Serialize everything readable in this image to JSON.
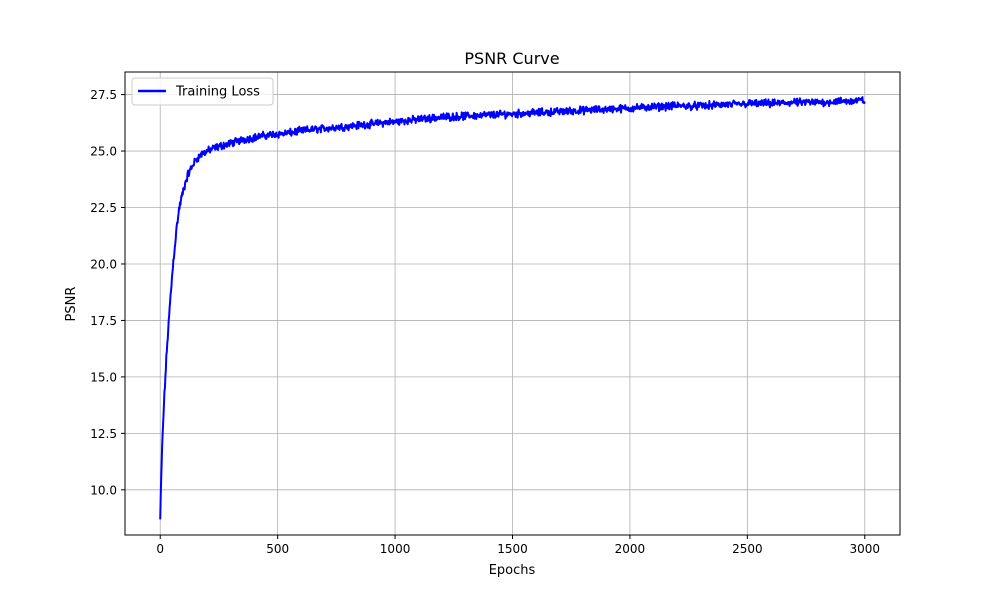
{
  "chart_data": {
    "type": "line",
    "title": "PSNR Curve",
    "xlabel": "Epochs",
    "ylabel": "PSNR",
    "xlim": [
      -150,
      3150
    ],
    "ylim": [
      8.0,
      28.5
    ],
    "x_ticks": [
      0,
      500,
      1000,
      1500,
      2000,
      2500,
      3000
    ],
    "x_tick_labels": [
      "0",
      "500",
      "1000",
      "1500",
      "2000",
      "2500",
      "3000"
    ],
    "y_ticks": [
      10.0,
      12.5,
      15.0,
      17.5,
      20.0,
      22.5,
      25.0,
      27.5
    ],
    "y_tick_labels": [
      "10.0",
      "12.5",
      "15.0",
      "17.5",
      "20.0",
      "22.5",
      "25.0",
      "27.5"
    ],
    "grid": true,
    "legend_position": "upper-left",
    "series": [
      {
        "name": "Training Loss",
        "color": "#0000ff",
        "x": [
          0,
          5,
          10,
          15,
          20,
          25,
          30,
          40,
          50,
          60,
          70,
          80,
          90,
          100,
          110,
          120,
          130,
          140,
          150,
          175,
          200,
          225,
          250,
          300,
          350,
          400,
          450,
          500,
          550,
          600,
          650,
          700,
          750,
          800,
          850,
          900,
          950,
          1000,
          1100,
          1200,
          1300,
          1400,
          1500,
          1600,
          1700,
          1800,
          1900,
          2000,
          2100,
          2200,
          2300,
          2400,
          2500,
          2600,
          2700,
          2800,
          2900,
          3000
        ],
        "y": [
          8.7,
          10.8,
          12.4,
          13.6,
          14.6,
          15.6,
          16.5,
          18.0,
          19.4,
          20.6,
          21.6,
          22.4,
          22.9,
          23.3,
          23.7,
          24.0,
          24.2,
          24.4,
          24.6,
          24.85,
          25.0,
          25.1,
          25.2,
          25.35,
          25.5,
          25.6,
          25.7,
          25.75,
          25.8,
          25.9,
          25.95,
          26.0,
          26.05,
          26.1,
          26.15,
          26.2,
          26.25,
          26.3,
          26.4,
          26.5,
          26.55,
          26.6,
          26.65,
          26.7,
          26.75,
          26.8,
          26.85,
          26.9,
          26.95,
          27.0,
          27.0,
          27.05,
          27.1,
          27.1,
          27.15,
          27.15,
          27.2,
          27.25
        ]
      }
    ]
  }
}
